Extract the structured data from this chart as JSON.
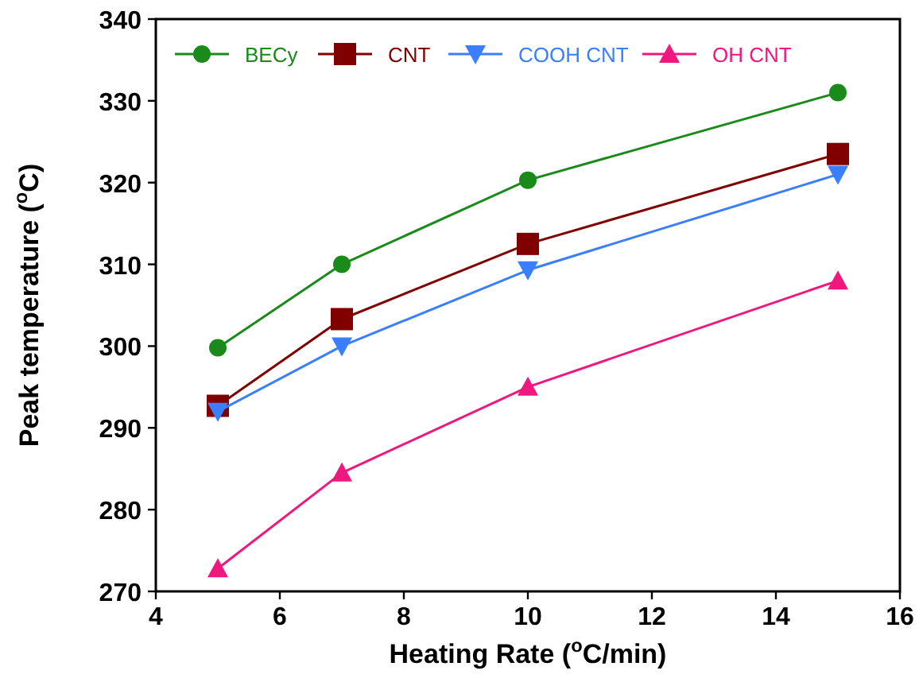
{
  "chart_data": {
    "type": "line",
    "xlabel": "Heating Rate ($^{o}$C/min)",
    "ylabel": "Peak temperature ($^{o}$C)",
    "x": [
      5,
      7,
      10,
      15
    ],
    "xlim": [
      4,
      16
    ],
    "xticks": [
      4,
      6,
      8,
      10,
      12,
      14,
      16
    ],
    "ylim": [
      270,
      340
    ],
    "yticks": [
      270,
      280,
      290,
      300,
      310,
      320,
      330,
      340
    ],
    "grid": false,
    "legend": "top",
    "line_style": "solid",
    "series": [
      {
        "name": "BECy",
        "color": "#1a8a1a",
        "marker": "circle",
        "values": [
          299.8,
          310,
          320.3,
          331
        ]
      },
      {
        "name": "CNT",
        "color": "#800000",
        "marker": "square",
        "values": [
          292.7,
          303.3,
          312.5,
          323.5
        ]
      },
      {
        "name": "COOH CNT",
        "color": "#3a7fff",
        "marker": "triangle-down",
        "values": [
          292,
          300,
          309.3,
          321
        ]
      },
      {
        "name": "OH CNT",
        "color": "#f0177f",
        "marker": "triangle",
        "values": [
          272.8,
          284.5,
          295,
          308
        ]
      }
    ]
  }
}
